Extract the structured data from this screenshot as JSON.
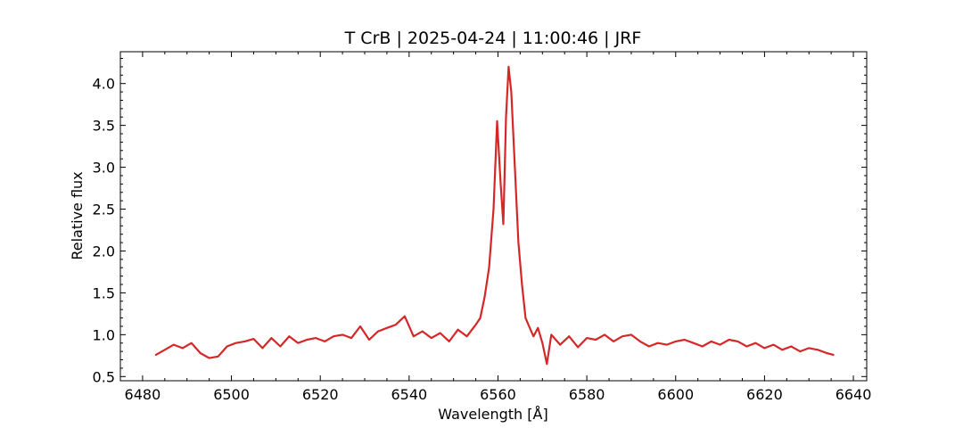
{
  "chart_data": {
    "type": "line",
    "title": "T CrB | 2025-04-24 | 11:00:46 | JRF",
    "xlabel": "Wavelength [Å]",
    "ylabel": "Relative flux",
    "xlim": [
      6475,
      6643
    ],
    "ylim": [
      0.45,
      4.38
    ],
    "xticks": [
      6480,
      6500,
      6520,
      6540,
      6560,
      6580,
      6600,
      6620,
      6640
    ],
    "yticks": [
      0.5,
      1.0,
      1.5,
      2.0,
      2.5,
      3.0,
      3.5,
      4.0
    ],
    "xtick_labels": [
      "6480",
      "6500",
      "6520",
      "6540",
      "6560",
      "6580",
      "6600",
      "6620",
      "6640"
    ],
    "ytick_labels": [
      "0.5",
      "1.0",
      "1.5",
      "2.0",
      "2.5",
      "3.0",
      "3.5",
      "4.0"
    ],
    "grid": false,
    "series": [
      {
        "color": "#d62728",
        "x": [
          6483,
          6485,
          6487,
          6489,
          6491,
          6493,
          6495,
          6497,
          6499,
          6501,
          6503,
          6505,
          6507,
          6509,
          6511,
          6513,
          6515,
          6517,
          6519,
          6521,
          6523,
          6525,
          6527,
          6529,
          6531,
          6533,
          6535,
          6537,
          6539,
          6541,
          6543,
          6545,
          6547,
          6549,
          6551,
          6553,
          6555,
          6556,
          6557,
          6558,
          6559,
          6559.8,
          6560.6,
          6561.2,
          6561.8,
          6562.4,
          6563.0,
          6563.8,
          6564.6,
          6565.4,
          6566.2,
          6567,
          6568,
          6569,
          6570,
          6571,
          6572,
          6574,
          6576,
          6578,
          6580,
          6582,
          6584,
          6586,
          6588,
          6590,
          6592,
          6594,
          6596,
          6598,
          6600,
          6602,
          6604,
          6606,
          6608,
          6610,
          6612,
          6614,
          6616,
          6618,
          6620,
          6622,
          6624,
          6626,
          6628,
          6630,
          6632,
          6634,
          6635.5
        ],
        "y": [
          0.76,
          0.82,
          0.88,
          0.84,
          0.9,
          0.78,
          0.72,
          0.74,
          0.86,
          0.9,
          0.92,
          0.95,
          0.84,
          0.96,
          0.86,
          0.98,
          0.9,
          0.94,
          0.96,
          0.92,
          0.98,
          1.0,
          0.96,
          1.1,
          0.94,
          1.04,
          1.08,
          1.12,
          1.22,
          0.98,
          1.04,
          0.96,
          1.02,
          0.92,
          1.06,
          0.98,
          1.12,
          1.2,
          1.45,
          1.8,
          2.5,
          3.55,
          2.8,
          2.32,
          3.6,
          4.2,
          3.9,
          3.0,
          2.1,
          1.6,
          1.2,
          1.1,
          0.98,
          1.08,
          0.9,
          0.65,
          1.0,
          0.88,
          0.98,
          0.85,
          0.96,
          0.94,
          1.0,
          0.92,
          0.98,
          1.0,
          0.92,
          0.86,
          0.9,
          0.88,
          0.92,
          0.94,
          0.9,
          0.86,
          0.92,
          0.88,
          0.94,
          0.92,
          0.86,
          0.9,
          0.84,
          0.88,
          0.82,
          0.86,
          0.8,
          0.84,
          0.82,
          0.78,
          0.76
        ]
      }
    ]
  }
}
